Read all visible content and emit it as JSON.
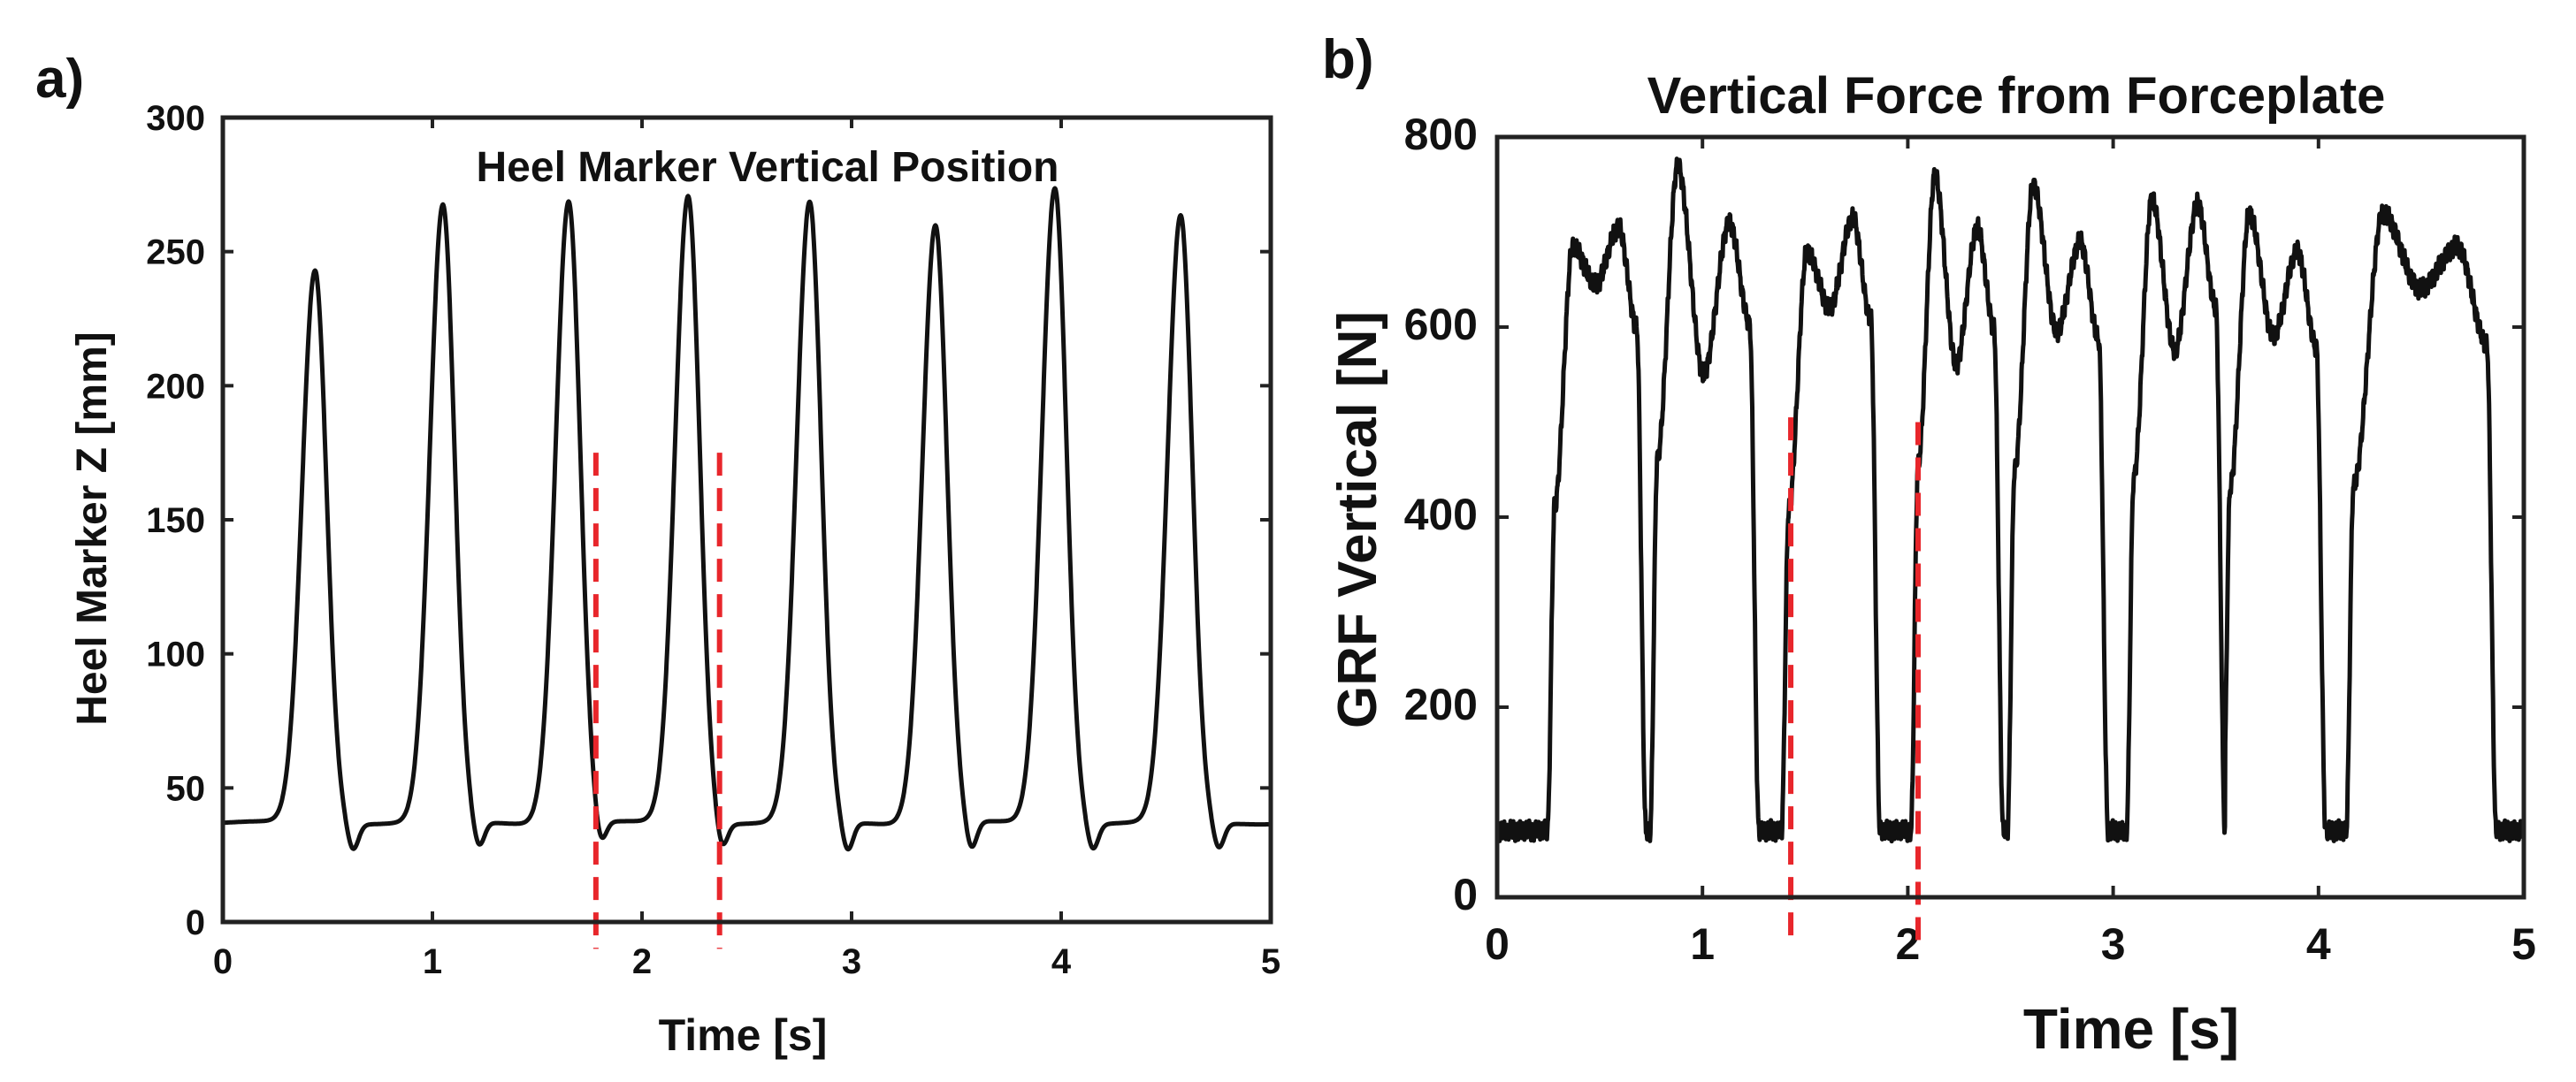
{
  "chart_data": [
    {
      "id": "a",
      "panel_label": "a)",
      "type": "line",
      "title": "Heel Marker Vertical Position",
      "xlabel": "Time [s]",
      "ylabel": "Heel Marker Z [mm]",
      "xlim": [
        0,
        5
      ],
      "ylim": [
        0,
        300
      ],
      "xticks": [
        0,
        1,
        2,
        3,
        4,
        5
      ],
      "yticks": [
        0,
        50,
        100,
        150,
        200,
        250,
        300
      ],
      "grid": false,
      "line_color": "#111111",
      "marker_color": "#e8262b",
      "series": [
        {
          "name": "Heel Marker Z",
          "baseline": 37,
          "peaks": [
            {
              "t": 0.44,
              "v": 243
            },
            {
              "t": 1.05,
              "v": 267
            },
            {
              "t": 1.65,
              "v": 269
            },
            {
              "t": 2.22,
              "v": 271
            },
            {
              "t": 2.8,
              "v": 268
            },
            {
              "t": 3.4,
              "v": 260
            },
            {
              "t": 3.97,
              "v": 274
            },
            {
              "t": 4.57,
              "v": 263
            }
          ],
          "troughs": [
            {
              "t": 0.62,
              "v": 27
            },
            {
              "t": 1.22,
              "v": 27
            },
            {
              "t": 1.8,
              "v": 27
            },
            {
              "t": 2.38,
              "v": 27
            },
            {
              "t": 2.98,
              "v": 26
            },
            {
              "t": 3.57,
              "v": 26
            },
            {
              "t": 4.15,
              "v": 27
            },
            {
              "t": 4.75,
              "v": 27
            }
          ]
        }
      ],
      "markers": [
        {
          "t": 1.78,
          "from": -10,
          "to": 175
        },
        {
          "t": 2.37,
          "from": -10,
          "to": 175
        }
      ]
    },
    {
      "id": "b",
      "panel_label": "b)",
      "type": "line",
      "title": "Vertical Force from Forceplate",
      "xlabel": "Time [s]",
      "ylabel": "GRF Vertical  [N]",
      "xlim": [
        0,
        5
      ],
      "ylim": [
        0,
        800
      ],
      "xticks": [
        0,
        1,
        2,
        3,
        4,
        5
      ],
      "yticks": [
        0,
        200,
        400,
        600,
        800
      ],
      "grid": false,
      "line_color": "#111111",
      "marker_color": "#e8262b",
      "series": [
        {
          "name": "GRF Vertical",
          "baseline": 70,
          "stance_phases": [
            {
              "on": 0.28,
              "off": 0.68,
              "p1": 685,
              "valley": 645,
              "p2": 705
            },
            {
              "on": 0.78,
              "off": 1.23,
              "p1": 770,
              "valley": 550,
              "p2": 710
            },
            {
              "on": 1.42,
              "off": 1.82,
              "p1": 680,
              "valley": 620,
              "p2": 715
            },
            {
              "on": 2.05,
              "off": 2.42,
              "p1": 760,
              "valley": 560,
              "p2": 705
            },
            {
              "on": 2.52,
              "off": 2.93,
              "p1": 750,
              "valley": 595,
              "p2": 690
            },
            {
              "on": 3.1,
              "off": 3.5,
              "p1": 735,
              "valley": 575,
              "p2": 730
            },
            {
              "on": 3.57,
              "off": 3.99,
              "p1": 720,
              "valley": 590,
              "p2": 680
            },
            {
              "on": 4.17,
              "off": 4.82,
              "p1": 720,
              "valley": 640,
              "p2": 685
            }
          ]
        }
      ],
      "markers": [
        {
          "t": 1.43,
          "from": -45,
          "to": 505
        },
        {
          "t": 2.05,
          "from": -45,
          "to": 500
        }
      ]
    }
  ]
}
